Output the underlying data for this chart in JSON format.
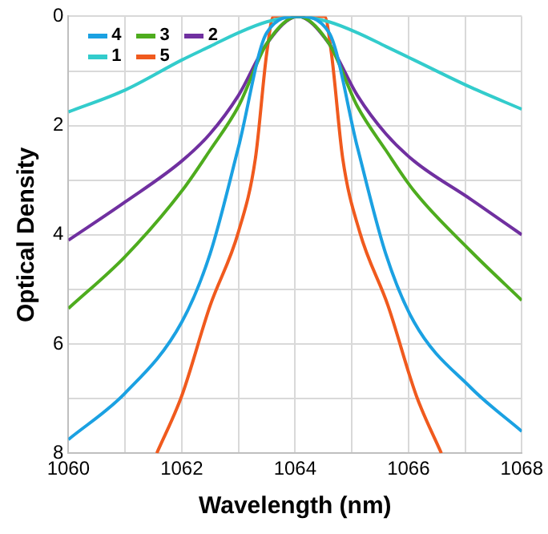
{
  "chart_data": {
    "type": "line",
    "xlabel": "Wavelength (nm)",
    "ylabel": "Optical Density",
    "xlim": [
      1060,
      1068
    ],
    "xticks": [
      1060,
      {
        "value": 1061,
        "label": null
      },
      1062,
      {
        "value": 1063,
        "label": null
      },
      1064,
      {
        "value": 1065,
        "label": null
      },
      1066,
      {
        "value": 1067,
        "label": null
      },
      1068
    ],
    "ylim": [
      8,
      0
    ],
    "yticks": [
      0,
      {
        "value": 1,
        "label": null
      },
      2,
      {
        "value": 3,
        "label": null
      },
      4,
      {
        "value": 5,
        "label": null
      },
      6,
      {
        "value": 7,
        "label": null
      },
      8
    ],
    "grid": true,
    "legend": "top left",
    "marker": "none",
    "line_style": "solid",
    "series": [
      {
        "name": "4",
        "color": "#1ba1e2",
        "x": [
          1060,
          1061,
          1062,
          1062.5,
          1063,
          1063.5,
          1064.05,
          1064.6,
          1065.1,
          1065.6,
          1066.1,
          1067.1,
          1068
        ],
        "values": [
          7.75,
          6.9,
          5.6,
          4.35,
          2.4,
          0.3,
          0,
          0.3,
          2.4,
          4.35,
          5.6,
          6.8,
          7.6
        ]
      },
      {
        "name": "3",
        "color": "#4eac1e",
        "x": [
          1060,
          1061,
          1062,
          1062.5,
          1063,
          1063.5,
          1064.05,
          1064.6,
          1065.1,
          1065.6,
          1066.1,
          1067.1,
          1068
        ],
        "values": [
          5.35,
          4.4,
          3.2,
          2.45,
          1.65,
          0.5,
          0,
          0.5,
          1.65,
          2.45,
          3.2,
          4.3,
          5.2
        ]
      },
      {
        "name": "2",
        "color": "#7030a0",
        "x": [
          1060,
          1061,
          1062,
          1062.5,
          1063,
          1063.5,
          1064.05,
          1064.6,
          1065.1,
          1065.6,
          1066.1,
          1067.1,
          1068
        ],
        "values": [
          4.1,
          3.4,
          2.65,
          2.15,
          1.45,
          0.5,
          0,
          0.5,
          1.45,
          2.15,
          2.65,
          3.35,
          4.0
        ]
      },
      {
        "name": "1",
        "color": "#33cccc",
        "x": [
          1060,
          1061,
          1062,
          1062.5,
          1063,
          1063.5,
          1064.05,
          1064.6,
          1065.1,
          1065.6,
          1066.1,
          1067.1,
          1068
        ],
        "values": [
          1.75,
          1.35,
          0.8,
          0.55,
          0.3,
          0.1,
          0,
          0.1,
          0.3,
          0.55,
          0.8,
          1.3,
          1.7
        ]
      },
      {
        "name": "5",
        "color": "#f05a1e",
        "x": [
          1061.56,
          1062,
          1062.5,
          1063,
          1063.3,
          1063.5,
          1063.62,
          1064.52,
          1064.64,
          1064.84,
          1065.14,
          1065.64,
          1066.14,
          1066.58
        ],
        "values": [
          8,
          6.95,
          5.3,
          3.95,
          2.6,
          0.67,
          0,
          0,
          0.67,
          2.6,
          3.95,
          5.3,
          6.95,
          8
        ]
      }
    ]
  }
}
